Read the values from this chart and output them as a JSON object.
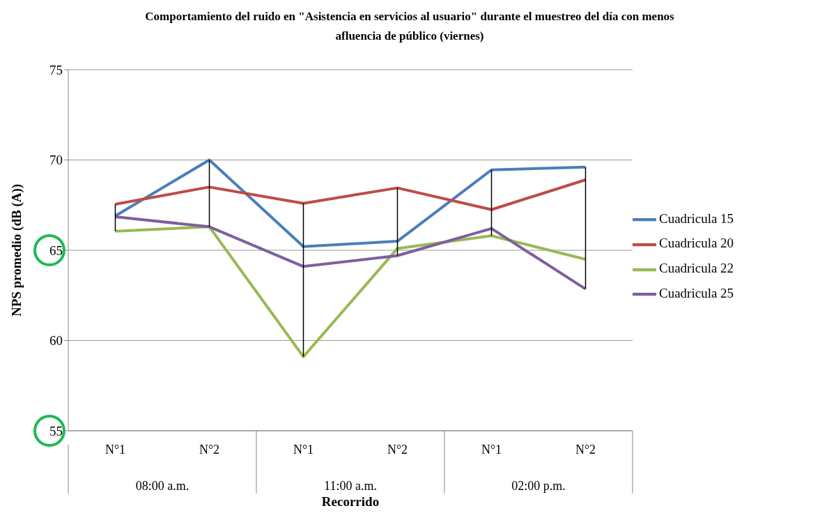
{
  "chart_data": {
    "type": "line",
    "title": "Comportamiento del ruido en \"Asistencia en servicios al usuario\" durante el muestreo del día con menos afluencia de público (viernes)",
    "xlabel": "Recorrido",
    "ylabel": "NPS promedio (dB (A))",
    "categories": [
      "N°1",
      "N°2",
      "N°1",
      "N°2",
      "N°1",
      "N°2"
    ],
    "annotations": [
      "08:00 a.m.",
      "11:00 a.m.",
      "02:00 p.m."
    ],
    "series": [
      {
        "name": "Cuadricula 15",
        "color": "#4a7ebb",
        "values": [
          66.9,
          70.0,
          65.2,
          65.5,
          69.45,
          69.6
        ]
      },
      {
        "name": "Cuadricula 20",
        "color": "#be4b48",
        "values": [
          67.55,
          68.5,
          67.6,
          68.45,
          67.25,
          68.9
        ]
      },
      {
        "name": "Cuadricula 22",
        "color": "#98b954",
        "values": [
          66.05,
          66.3,
          59.1,
          65.1,
          65.8,
          64.5
        ]
      },
      {
        "name": "Cuadricula 25",
        "color": "#7d5fa0",
        "values": [
          66.85,
          66.3,
          64.1,
          64.7,
          66.2,
          62.85
        ]
      }
    ],
    "ylim": [
      55,
      75
    ],
    "yticks": [
      55,
      60,
      65,
      70,
      75
    ],
    "grid": "y",
    "legend": "right",
    "marker": "none",
    "line_style": "solid"
  }
}
